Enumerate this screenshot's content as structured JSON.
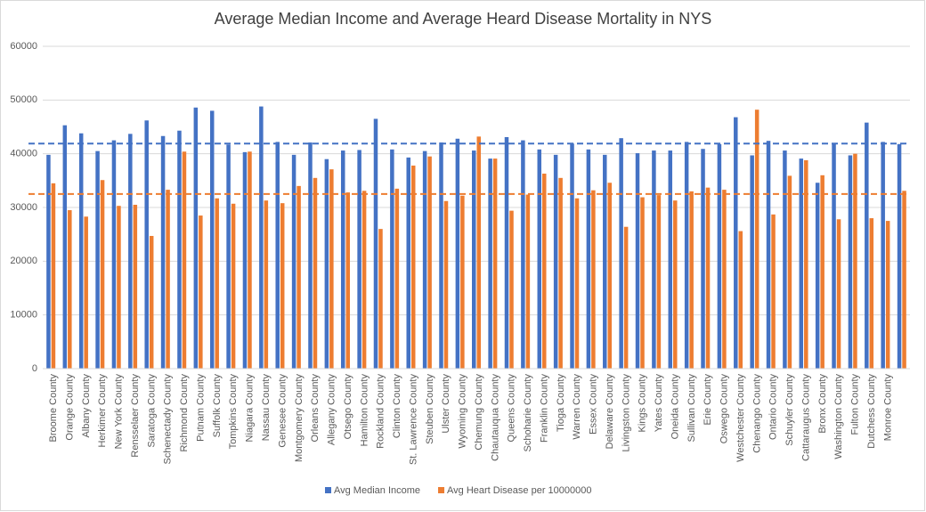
{
  "chart_data": {
    "type": "bar",
    "title": "Average Median Income and Average Heard Disease Mortality in NYS",
    "categories": [
      "Broome County",
      "Orange County",
      "Albany County",
      "Herkimer County",
      "New York County",
      "Rensselaer County",
      "Saratoga County",
      "Schenectady County",
      "Richmond County",
      "Putnam County",
      "Suffolk County",
      "Tompkins County",
      "Niagara County",
      "Nassau County",
      "Genesee County",
      "Montgomery County",
      "Orleans County",
      "Allegany County",
      "Otsego County",
      "Hamilton County",
      "Rockland County",
      "Clinton County",
      "St. Lawrence County",
      "Steuben County",
      "Ulster County",
      "Wyoming County",
      "Chemung County",
      "Chautauqua County",
      "Queens County",
      "Schoharie County",
      "Franklin County",
      "Tioga County",
      "Warren County",
      "Essex County",
      "Delaware County",
      "Livingston County",
      "Kings County",
      "Yates County",
      "Oneida County",
      "Sullivan County",
      "Erie County",
      "Oswego County",
      "Westchester County",
      "Chenango County",
      "Ontario County",
      "Schuyler County",
      "Cattaraugus County",
      "Bronx County",
      "Washington County",
      "Fulton County",
      "Dutchess County",
      "Monroe County",
      null
    ],
    "series": [
      {
        "name": "Avg Median Income",
        "color": "#4472c4",
        "values": [
          39800,
          45300,
          43800,
          40500,
          42500,
          43700,
          46200,
          43300,
          44300,
          48600,
          48000,
          41700,
          40300,
          48800,
          42200,
          39800,
          42100,
          39000,
          40600,
          40700,
          46500,
          40800,
          39300,
          40500,
          42100,
          42800,
          40600,
          39100,
          43100,
          42500,
          40800,
          39800,
          41900,
          40800,
          39800,
          42900,
          40100,
          40600,
          40600,
          42200,
          40900,
          41800,
          46800,
          39700,
          42400,
          40600,
          39100,
          34600,
          42000,
          39700,
          45800,
          42200,
          41800
        ]
      },
      {
        "name": "Avg Heart Disease per 10000000",
        "color": "#ed7d31",
        "values": [
          34500,
          29500,
          28300,
          35100,
          30300,
          30500,
          24700,
          33300,
          40400,
          28500,
          31700,
          30700,
          40400,
          31300,
          30800,
          34000,
          35500,
          37100,
          32800,
          33100,
          26000,
          33500,
          37800,
          39500,
          31200,
          32200,
          43200,
          39100,
          29400,
          32400,
          36300,
          35500,
          31700,
          33200,
          34600,
          26400,
          31900,
          32300,
          31300,
          33000,
          33700,
          33300,
          25600,
          48200,
          28700,
          35900,
          38800,
          36000,
          27800,
          40000,
          28000,
          27500,
          33100
        ]
      }
    ],
    "reference_lines": [
      {
        "value": 41900,
        "color": "#4472c4"
      },
      {
        "value": 32500,
        "color": "#ed7d31"
      }
    ],
    "ylim": [
      0,
      60000
    ],
    "yticks": [
      0,
      10000,
      20000,
      30000,
      40000,
      50000,
      60000
    ],
    "grid": true,
    "legend": "bottom"
  }
}
